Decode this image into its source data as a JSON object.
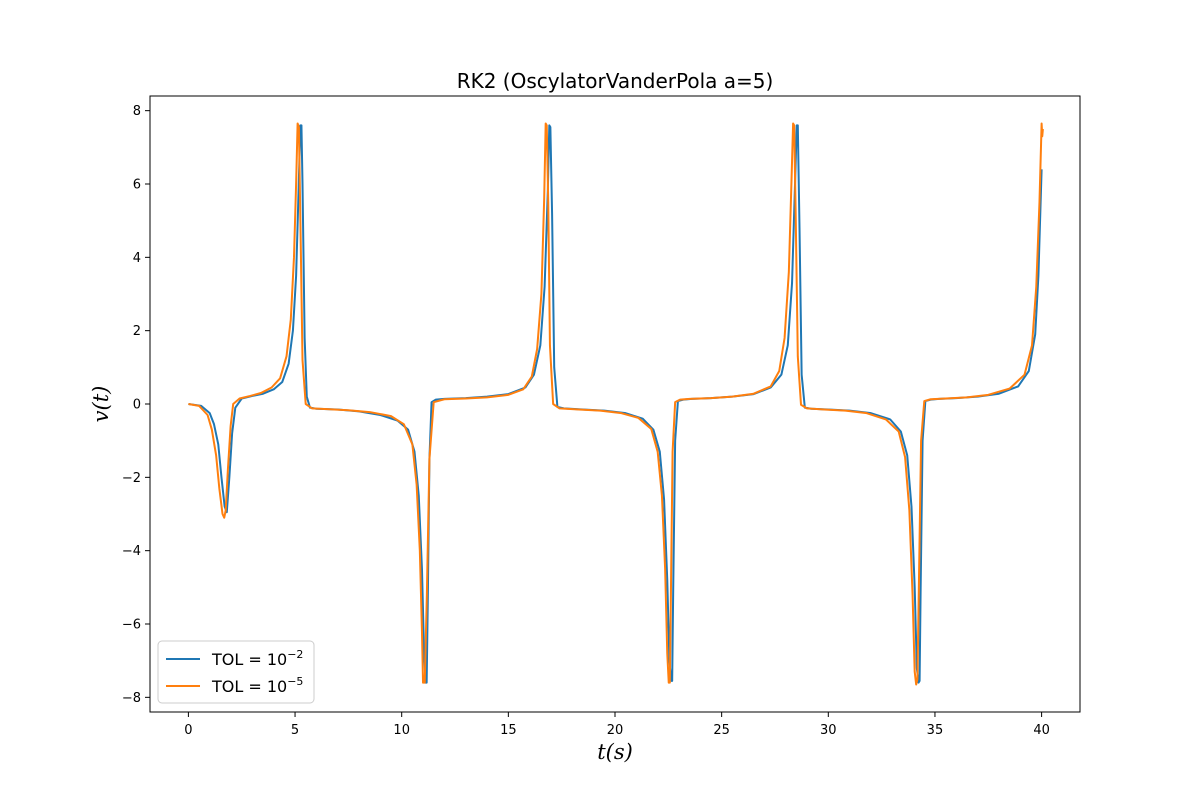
{
  "chart_data": {
    "type": "line",
    "title": "RK2 (OscylatorVanderPola a=5)",
    "xlabel": "t(s)",
    "ylabel": "v(t)",
    "xlim": [
      -1.8,
      41.8
    ],
    "ylim": [
      -8.4,
      8.4
    ],
    "xticks": [
      0,
      5,
      10,
      15,
      20,
      25,
      30,
      35,
      40
    ],
    "yticks": [
      -8,
      -6,
      -4,
      -2,
      0,
      2,
      4,
      6,
      8
    ],
    "grid": false,
    "legend_position": "lower-left",
    "series": [
      {
        "name": "TOL = 10^-2",
        "label_main": "TOL = 10",
        "label_exp": "−2",
        "color": "#1f77b4",
        "x": [
          0,
          0.6,
          1.0,
          1.2,
          1.4,
          1.55,
          1.7,
          1.8,
          1.92,
          2.05,
          2.2,
          2.5,
          3.0,
          3.5,
          4.0,
          4.4,
          4.7,
          4.9,
          5.05,
          5.15,
          5.25,
          5.3,
          5.35,
          5.45,
          5.55,
          5.7,
          6.0,
          7.0,
          8.0,
          9.0,
          9.8,
          10.3,
          10.6,
          10.8,
          10.95,
          11.05,
          11.12,
          11.17,
          11.22,
          11.3,
          11.4,
          11.6,
          12.0,
          13.0,
          14.0,
          15.0,
          15.8,
          16.2,
          16.5,
          16.7,
          16.85,
          16.92,
          16.97,
          17.05,
          17.15,
          17.3,
          17.6,
          18.5,
          19.5,
          20.5,
          21.3,
          21.8,
          22.1,
          22.3,
          22.45,
          22.55,
          22.63,
          22.68,
          22.73,
          22.82,
          22.95,
          23.2,
          23.6,
          24.5,
          25.5,
          26.5,
          27.3,
          27.8,
          28.1,
          28.3,
          28.45,
          28.52,
          28.57,
          28.65,
          28.75,
          28.9,
          29.2,
          30.0,
          31.0,
          32.0,
          32.9,
          33.4,
          33.7,
          33.9,
          34.05,
          34.15,
          34.23,
          34.28,
          34.33,
          34.42,
          34.55,
          34.8,
          35.2,
          36.0,
          37.0,
          38.0,
          38.9,
          39.4,
          39.7,
          39.85,
          40.0
        ],
        "y": [
          0.0,
          -0.05,
          -0.25,
          -0.55,
          -1.1,
          -2.0,
          -2.8,
          -2.95,
          -2.0,
          -0.8,
          -0.1,
          0.15,
          0.22,
          0.28,
          0.4,
          0.6,
          1.1,
          2.0,
          3.5,
          5.5,
          7.6,
          7.6,
          6.0,
          1.8,
          0.2,
          -0.1,
          -0.13,
          -0.15,
          -0.2,
          -0.3,
          -0.45,
          -0.7,
          -1.3,
          -2.5,
          -4.5,
          -6.8,
          -7.6,
          -7.6,
          -5.5,
          -1.5,
          0.05,
          0.12,
          0.14,
          0.16,
          0.2,
          0.27,
          0.45,
          0.8,
          1.6,
          3.2,
          5.8,
          7.6,
          7.55,
          5.2,
          1.0,
          -0.08,
          -0.12,
          -0.15,
          -0.18,
          -0.25,
          -0.4,
          -0.7,
          -1.3,
          -2.6,
          -4.8,
          -7.0,
          -7.55,
          -7.55,
          -5.0,
          -1.0,
          0.08,
          0.12,
          0.14,
          0.16,
          0.2,
          0.27,
          0.45,
          0.8,
          1.6,
          3.3,
          6.2,
          7.6,
          7.6,
          4.8,
          0.8,
          -0.1,
          -0.13,
          -0.15,
          -0.18,
          -0.25,
          -0.42,
          -0.75,
          -1.4,
          -2.8,
          -5.0,
          -7.2,
          -7.6,
          -7.55,
          -5.0,
          -1.0,
          0.08,
          0.12,
          0.14,
          0.16,
          0.2,
          0.28,
          0.48,
          0.9,
          1.9,
          3.5,
          6.4
        ]
      },
      {
        "name": "TOL = 10^-5",
        "label_main": "TOL = 10",
        "label_exp": "−5",
        "color": "#ff7f0e",
        "x": [
          0,
          0.5,
          0.9,
          1.1,
          1.3,
          1.45,
          1.6,
          1.68,
          1.75,
          1.85,
          1.98,
          2.1,
          2.4,
          2.9,
          3.4,
          3.9,
          4.3,
          4.6,
          4.8,
          4.95,
          5.05,
          5.12,
          5.18,
          5.25,
          5.35,
          5.5,
          5.8,
          6.5,
          7.5,
          8.5,
          9.5,
          10.1,
          10.5,
          10.7,
          10.85,
          10.95,
          11.0,
          11.08,
          11.18,
          11.3,
          11.5,
          12.0,
          13.0,
          14.0,
          15.0,
          15.7,
          16.1,
          16.35,
          16.55,
          16.68,
          16.75,
          16.8,
          16.87,
          16.95,
          17.1,
          17.4,
          18.3,
          19.3,
          20.3,
          21.1,
          21.7,
          22.0,
          22.2,
          22.35,
          22.45,
          22.52,
          22.57,
          22.62,
          22.7,
          22.82,
          23.05,
          23.5,
          24.5,
          25.5,
          26.5,
          27.3,
          27.7,
          27.95,
          28.15,
          28.28,
          28.35,
          28.4,
          28.47,
          28.57,
          28.72,
          29.0,
          29.8,
          30.8,
          31.8,
          32.7,
          33.3,
          33.6,
          33.8,
          33.95,
          34.05,
          34.12,
          34.18,
          34.25,
          34.35,
          34.5,
          34.8,
          35.5,
          36.5,
          37.5,
          38.5,
          39.2,
          39.55,
          39.75,
          39.9,
          39.97,
          40.0,
          40.03,
          40.06
        ],
        "y": [
          0.0,
          -0.05,
          -0.3,
          -0.7,
          -1.4,
          -2.3,
          -3.0,
          -3.1,
          -2.9,
          -1.8,
          -0.6,
          0.0,
          0.15,
          0.22,
          0.3,
          0.45,
          0.7,
          1.3,
          2.3,
          4.0,
          6.0,
          7.65,
          7.55,
          5.0,
          1.2,
          0.0,
          -0.12,
          -0.14,
          -0.17,
          -0.22,
          -0.33,
          -0.55,
          -1.1,
          -2.2,
          -4.0,
          -6.2,
          -7.6,
          -7.6,
          -5.2,
          -1.5,
          0.05,
          0.13,
          0.15,
          0.18,
          0.25,
          0.4,
          0.75,
          1.5,
          3.0,
          5.6,
          7.65,
          7.6,
          5.5,
          1.6,
          0.0,
          -0.12,
          -0.15,
          -0.18,
          -0.25,
          -0.38,
          -0.68,
          -1.3,
          -2.5,
          -4.5,
          -6.8,
          -7.6,
          -7.6,
          -5.2,
          -1.3,
          0.05,
          0.12,
          0.14,
          0.16,
          0.2,
          0.28,
          0.48,
          0.9,
          1.8,
          3.6,
          6.2,
          7.65,
          7.6,
          5.2,
          1.3,
          -0.02,
          -0.12,
          -0.15,
          -0.18,
          -0.25,
          -0.42,
          -0.75,
          -1.45,
          -2.9,
          -5.2,
          -7.3,
          -7.65,
          -7.5,
          -4.8,
          -1.0,
          0.08,
          0.13,
          0.15,
          0.18,
          0.25,
          0.42,
          0.8,
          1.6,
          3.2,
          5.5,
          7.0,
          7.65,
          7.3,
          7.5
        ]
      }
    ]
  }
}
